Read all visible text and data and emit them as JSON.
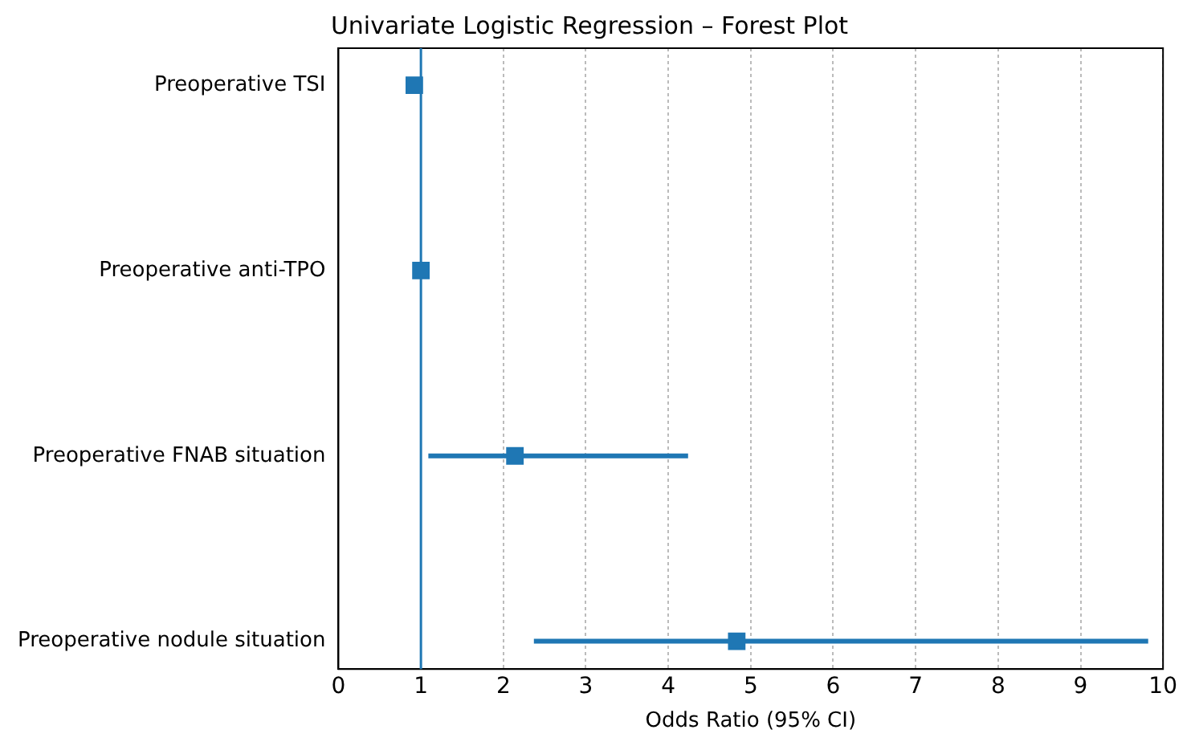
{
  "chart_data": {
    "type": "scatter",
    "title": "Univariate Logistic Regression – Forest Plot",
    "xlabel": "Odds Ratio (95% CI)",
    "orientation": "horizontal",
    "categories": [
      "Preoperative TSI",
      "Preoperative anti-TPO",
      "Preoperative FNAB situation",
      "Preoperative nodule situation"
    ],
    "values": [
      0.92,
      1.0,
      2.14,
      4.83
    ],
    "errors": [
      null,
      null,
      [
        1.09,
        4.24
      ],
      [
        2.37,
        9.82
      ]
    ],
    "color": "#1f77b4",
    "marker": "square",
    "xlim": [
      0,
      10
    ],
    "xticks": [
      0,
      1,
      2,
      3,
      4,
      5,
      6,
      7,
      8,
      9,
      10
    ],
    "ref_lines": [
      {
        "axis": "x",
        "value": 1,
        "color": "#1f77b4",
        "line_style": "solid"
      }
    ],
    "grid": "x",
    "legend": false
  }
}
